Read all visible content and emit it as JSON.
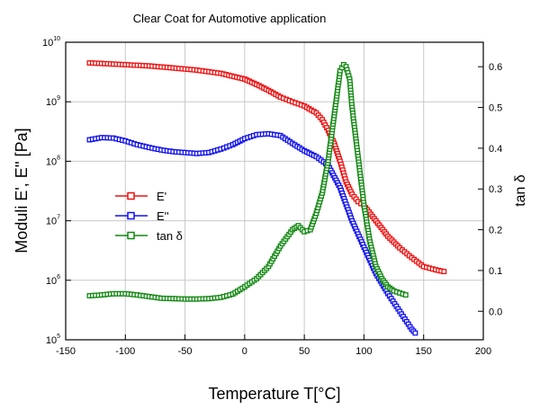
{
  "chart_data": {
    "type": "line",
    "title": "Clear Coat for Automotive application",
    "xlabel": "Temperature T[°C]",
    "ylabel": "Moduli E', E'' [Pa]",
    "y2label": "tan δ",
    "xlim": [
      -150,
      200
    ],
    "ylim_log10": [
      5,
      10
    ],
    "y2lim": [
      -0.07,
      0.66
    ],
    "y_scale": "log",
    "grid": true,
    "legend_position": "left",
    "x_ticks": [
      "-150",
      "-100",
      "-50",
      "0",
      "50",
      "100",
      "150",
      "200"
    ],
    "y_ticks": [
      {
        "base": "10",
        "exp": "10"
      },
      {
        "base": "10",
        "exp": "9"
      },
      {
        "base": "10",
        "exp": "8"
      },
      {
        "base": "10",
        "exp": "7"
      },
      {
        "base": "10",
        "exp": "6"
      },
      {
        "base": "10",
        "exp": "5"
      }
    ],
    "y2_ticks": [
      "0.0",
      "0.1",
      "0.2",
      "0.3",
      "0.4",
      "0.5",
      "0.6"
    ],
    "series": [
      {
        "name": "E'",
        "color": "#ee1111",
        "axis": "left",
        "x": [
          -130,
          -120,
          -100,
          -80,
          -60,
          -40,
          -20,
          0,
          10,
          20,
          30,
          40,
          50,
          60,
          65,
          70,
          75,
          80,
          85,
          90,
          95,
          100,
          110,
          120,
          130,
          140,
          150,
          160,
          167
        ],
        "y": [
          4500000000.0,
          4400000000.0,
          4200000000.0,
          4000000000.0,
          3700000000.0,
          3400000000.0,
          3000000000.0,
          2400000000.0,
          1950000000.0,
          1550000000.0,
          1200000000.0,
          1000000000.0,
          850000000.0,
          650000000.0,
          500000000.0,
          330000000.0,
          200000000.0,
          100000000.0,
          45000000.0,
          28000000.0,
          21000000.0,
          18000000.0,
          10000000.0,
          5500000.0,
          3500000.0,
          2400000.0,
          1700000.0,
          1500000.0,
          1400000.0
        ]
      },
      {
        "name": "E''",
        "color": "#1111ee",
        "axis": "left",
        "x": [
          -130,
          -120,
          -110,
          -100,
          -90,
          -80,
          -70,
          -60,
          -50,
          -40,
          -30,
          -20,
          -10,
          0,
          10,
          20,
          30,
          40,
          50,
          60,
          70,
          80,
          90,
          100,
          110,
          120,
          130,
          140,
          143
        ],
        "y": [
          230000000.0,
          250000000.0,
          245000000.0,
          220000000.0,
          190000000.0,
          170000000.0,
          155000000.0,
          145000000.0,
          140000000.0,
          135000000.0,
          140000000.0,
          160000000.0,
          190000000.0,
          240000000.0,
          280000000.0,
          290000000.0,
          270000000.0,
          200000000.0,
          150000000.0,
          120000000.0,
          85000000.0,
          36000000.0,
          10000000.0,
          3600000.0,
          1300000.0,
          600000.0,
          300000.0,
          150000.0,
          130000.0
        ]
      },
      {
        "name": "tan δ",
        "color": "#118811",
        "axis": "right",
        "x": [
          -130,
          -120,
          -110,
          -100,
          -90,
          -80,
          -70,
          -60,
          -50,
          -40,
          -30,
          -20,
          -10,
          0,
          10,
          20,
          30,
          40,
          45,
          50,
          55,
          60,
          65,
          70,
          75,
          80,
          83,
          85,
          88,
          90,
          95,
          100,
          105,
          110,
          115,
          120,
          125,
          130,
          135
        ],
        "y": [
          0.038,
          0.04,
          0.043,
          0.043,
          0.04,
          0.036,
          0.032,
          0.031,
          0.03,
          0.03,
          0.031,
          0.034,
          0.042,
          0.06,
          0.08,
          0.11,
          0.16,
          0.2,
          0.21,
          0.195,
          0.2,
          0.24,
          0.29,
          0.37,
          0.48,
          0.59,
          0.605,
          0.6,
          0.57,
          0.5,
          0.38,
          0.26,
          0.17,
          0.11,
          0.08,
          0.06,
          0.05,
          0.045,
          0.04
        ]
      }
    ]
  }
}
